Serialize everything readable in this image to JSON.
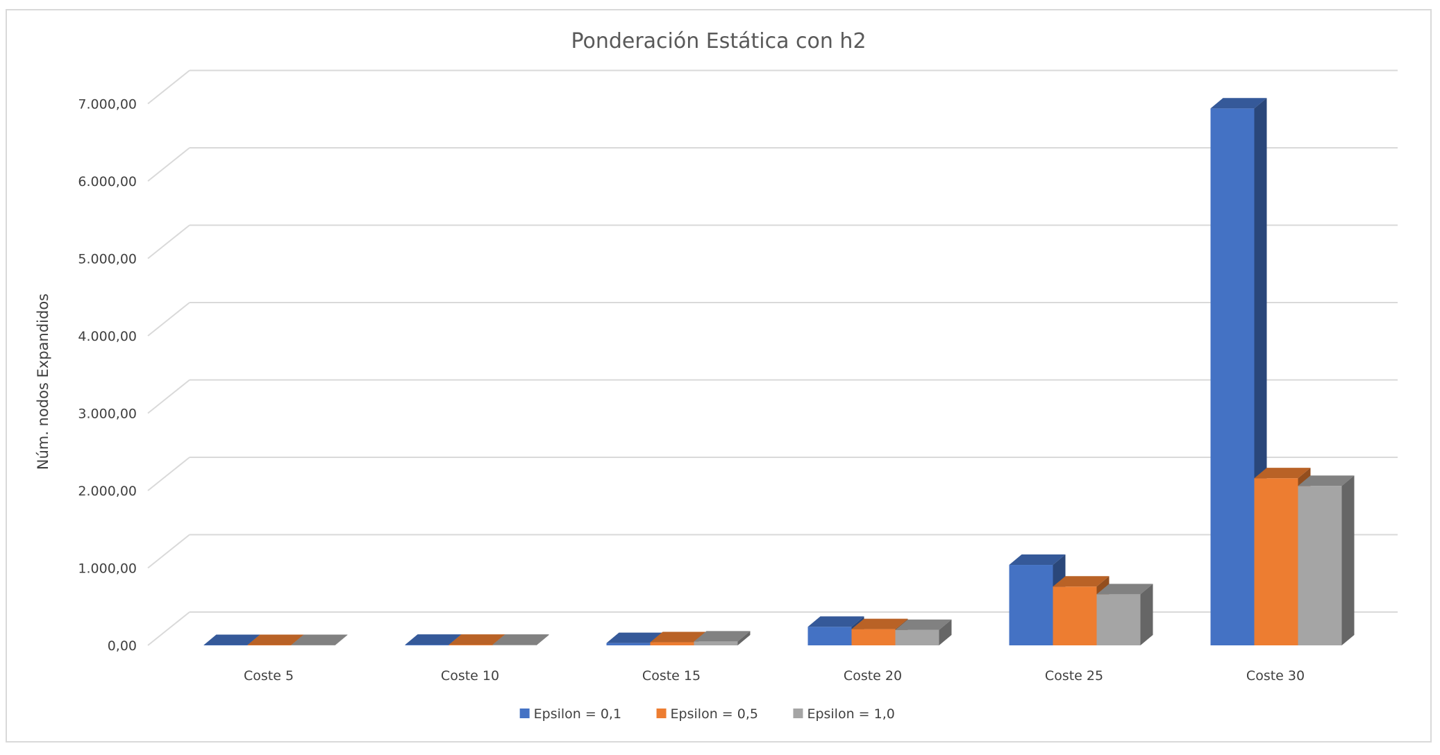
{
  "chart_data": {
    "type": "bar",
    "title": "Ponderación Estática con h2",
    "xlabel": "",
    "ylabel": "Núm. nodos Expandidos",
    "categories": [
      "Coste 5",
      "Coste 10",
      "Coste 15",
      "Coste 20",
      "Coste 25",
      "Coste 30"
    ],
    "ylim": [
      0,
      7000
    ],
    "yticks": [
      0,
      1000,
      2000,
      3000,
      4000,
      5000,
      6000,
      7000
    ],
    "ytick_labels": [
      "0,00",
      "1.000,00",
      "2.000,00",
      "3.000,00",
      "4.000,00",
      "5.000,00",
      "6.000,00",
      "7.000,00"
    ],
    "grid": true,
    "three_d": true,
    "legend_position": "bottom",
    "series": [
      {
        "name": "Epsilon = 0,1",
        "color": "#4472c4",
        "values": [
          5,
          8,
          30,
          240,
          1040,
          6940
        ]
      },
      {
        "name": "Epsilon = 0,5",
        "color": "#ed7d31",
        "values": [
          5,
          8,
          40,
          210,
          760,
          2160
        ]
      },
      {
        "name": "Epsilon = 1,0",
        "color": "#a5a5a5",
        "values": [
          5,
          8,
          50,
          200,
          660,
          2060
        ]
      }
    ]
  }
}
